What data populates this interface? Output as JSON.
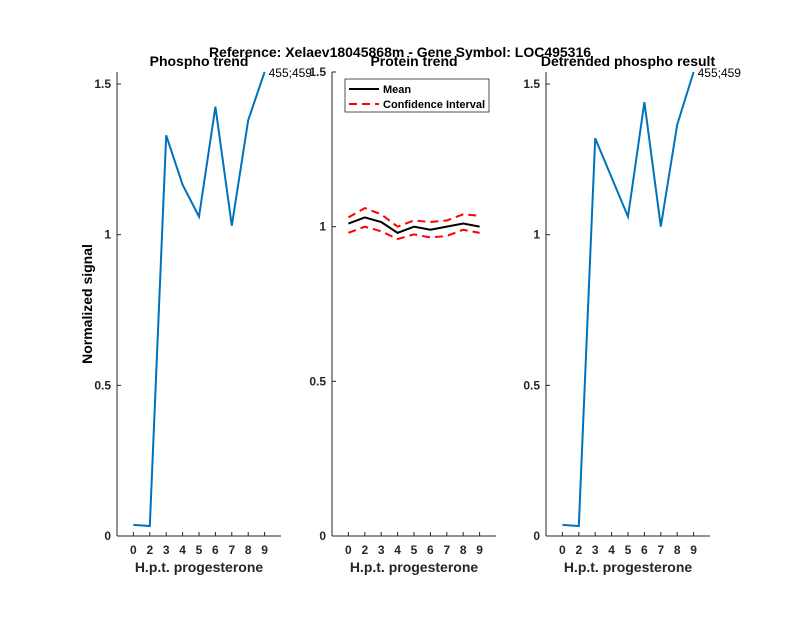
{
  "chart_data": {
    "title": "Reference:  Xelaev18045868m - Gene Symbol:  LOC495316",
    "ylabel": "Normalized signal",
    "colors": {
      "phospho": "#0072BD",
      "mean": "#000000",
      "ci": "#FF0000"
    },
    "panels": [
      {
        "type": "line",
        "title": "Phospho trend",
        "xlabel": "H.p.t. progesterone",
        "x": [
          "0",
          "2",
          "3",
          "4",
          "5",
          "6",
          "7",
          "8",
          "9"
        ],
        "ylim": [
          0,
          1.54
        ],
        "yticks": [
          "0",
          "0.5",
          "1",
          "1.5"
        ],
        "series": [
          {
            "values": [
              0.037,
              0.033,
              1.33,
              1.166,
              1.06,
              1.425,
              1.03,
              1.38,
              1.54
            ]
          }
        ],
        "annotation": "455;459"
      },
      {
        "type": "line",
        "title": "Protein trend",
        "xlabel": "H.p.t. progesterone",
        "x": [
          "0",
          "2",
          "3",
          "4",
          "5",
          "6",
          "7",
          "8",
          "9"
        ],
        "ylim": [
          0,
          1.5
        ],
        "yticks": [
          "0",
          "0.5",
          "1",
          "1.5"
        ],
        "legend": {
          "placement": "top",
          "entries": [
            "Mean",
            "Confidence Interval"
          ]
        },
        "series": [
          {
            "name": "Mean",
            "values": [
              1.01,
              1.03,
              1.015,
              0.98,
              1.0,
              0.99,
              1.0,
              1.01,
              1.0
            ]
          },
          {
            "name": "Confidence Interval",
            "values": [
              1.03,
              1.06,
              1.04,
              1.0,
              1.02,
              1.015,
              1.02,
              1.04,
              1.035
            ]
          },
          {
            "name": "Confidence Interval",
            "values": [
              0.98,
              1.0,
              0.985,
              0.96,
              0.975,
              0.965,
              0.97,
              0.99,
              0.98
            ]
          }
        ]
      },
      {
        "type": "line",
        "title": "Detrended phospho result",
        "xlabel": "H.p.t. progesterone",
        "x": [
          "0",
          "2",
          "3",
          "4",
          "5",
          "6",
          "7",
          "8",
          "9"
        ],
        "ylim": [
          0,
          1.54
        ],
        "yticks": [
          "0",
          "0.5",
          "1",
          "1.5"
        ],
        "series": [
          {
            "values": [
              0.037,
              0.033,
              1.32,
              1.19,
              1.06,
              1.44,
              1.027,
              1.365,
              1.54
            ]
          }
        ],
        "annotation": "455;459"
      }
    ]
  }
}
